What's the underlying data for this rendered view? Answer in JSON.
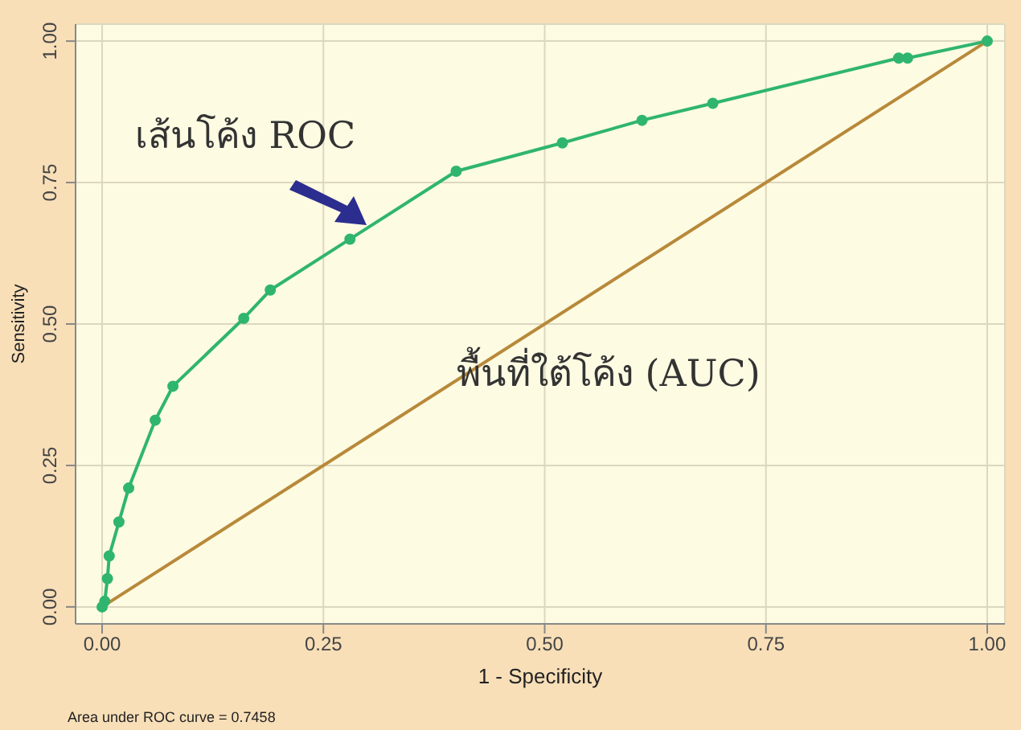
{
  "chart_data": {
    "type": "line",
    "xlabel": "1 - Specificity",
    "ylabel": "Sensitivity",
    "annotations": [
      "เส้นโค้ง ROC",
      "พื้นที่ใต้โค้ง (AUC)",
      "Area under ROC curve = 0.7458"
    ],
    "series": [
      {
        "color": "#2fb56f",
        "marker": "circle",
        "x": [
          0,
          0.003,
          0.006,
          0.008,
          0.019,
          0.03,
          0.06,
          0.08,
          0.16,
          0.19,
          0.28,
          0.4,
          0.52,
          0.61,
          0.69,
          0.9,
          0.91,
          1
        ],
        "values": [
          0,
          0.01,
          0.05,
          0.09,
          0.15,
          0.21,
          0.33,
          0.39,
          0.51,
          0.56,
          0.65,
          0.77,
          0.82,
          0.86,
          0.89,
          0.97,
          0.97,
          1
        ]
      },
      {
        "color": "#b8893a",
        "marker": "none",
        "x": [
          0,
          1
        ],
        "values": [
          0,
          1
        ]
      }
    ],
    "xlim": [
      -0.03,
      1.02
    ],
    "ylim": [
      -0.03,
      1.03
    ],
    "xticks": [
      {
        "value": 0,
        "label": "0.00"
      },
      {
        "value": 0.25,
        "label": "0.25"
      },
      {
        "value": 0.5,
        "label": "0.50"
      },
      {
        "value": 0.75,
        "label": "0.75"
      },
      {
        "value": 1,
        "label": "1.00"
      }
    ],
    "yticks": [
      {
        "value": 0,
        "label": "0.00"
      },
      {
        "value": 0.25,
        "label": "0.25"
      },
      {
        "value": 0.5,
        "label": "0.50"
      },
      {
        "value": 0.75,
        "label": "0.75"
      },
      {
        "value": 1,
        "label": "1.00"
      }
    ],
    "grid": true
  }
}
